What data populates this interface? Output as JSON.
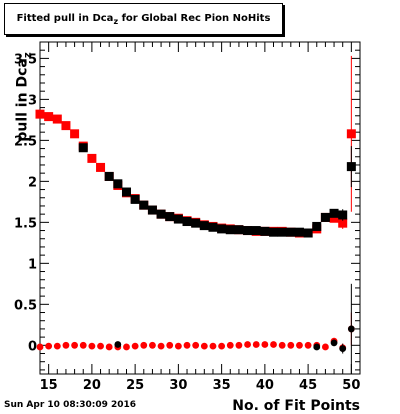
{
  "title": {
    "main": "Fitted pull in Dca",
    "subscript": "z",
    "suffix": " for Global Rec Pion NoHits"
  },
  "ylabel": {
    "main": "pull in Dca",
    "subscript": "z"
  },
  "xlabel": "No. of Fit Points",
  "timestamp": "Sun Apr 10 08:30:09 2016",
  "colors": {
    "red": "#ff0000",
    "black": "#000000"
  },
  "chart_data": {
    "type": "scatter",
    "xlim": [
      14,
      51
    ],
    "ylim": [
      -0.35,
      3.7
    ],
    "xticks": [
      15,
      20,
      25,
      30,
      35,
      40,
      45,
      50
    ],
    "xtick_labels": [
      "15",
      "20",
      "25",
      "30",
      "35",
      "40",
      "45",
      "50"
    ],
    "yticks": [
      0,
      0.5,
      1,
      1.5,
      2,
      2.5,
      3,
      3.5
    ],
    "ytick_labels": [
      "0",
      "0.5",
      "1",
      "1.5",
      "2",
      "2.5",
      "3",
      "3.5"
    ],
    "grid": false,
    "series": [
      {
        "color": "red",
        "marker": "square",
        "x": [
          14,
          15,
          16,
          17,
          18,
          19,
          20,
          21,
          22,
          23,
          24,
          25,
          26,
          27,
          28,
          29,
          30,
          31,
          32,
          33,
          34,
          35,
          36,
          37,
          38,
          39,
          40,
          41,
          42,
          43,
          44,
          45,
          46,
          47,
          48,
          49,
          50
        ],
        "y": [
          2.82,
          2.79,
          2.76,
          2.68,
          2.58,
          2.43,
          2.28,
          2.17,
          2.06,
          1.95,
          1.86,
          1.79,
          1.71,
          1.65,
          1.6,
          1.57,
          1.55,
          1.52,
          1.5,
          1.47,
          1.45,
          1.43,
          1.42,
          1.41,
          1.4,
          1.39,
          1.39,
          1.39,
          1.39,
          1.38,
          1.37,
          1.37,
          1.42,
          1.56,
          1.55,
          1.49,
          2.58
        ],
        "yerr": [
          0.02,
          0.02,
          0.02,
          0.02,
          0.02,
          0.02,
          0.02,
          0.02,
          0.02,
          0.02,
          0.02,
          0.02,
          0.02,
          0.02,
          0.02,
          0.02,
          0.02,
          0.02,
          0.02,
          0.02,
          0.02,
          0.02,
          0.02,
          0.02,
          0.02,
          0.02,
          0.02,
          0.02,
          0.02,
          0.02,
          0.02,
          0.03,
          0.03,
          0.04,
          0.05,
          0.07,
          0.95
        ]
      },
      {
        "color": "black",
        "marker": "square",
        "x": [
          19,
          22,
          23,
          24,
          25,
          26,
          27,
          28,
          29,
          30,
          31,
          32,
          33,
          34,
          35,
          36,
          37,
          38,
          39,
          40,
          41,
          42,
          43,
          44,
          45,
          46,
          47,
          48,
          49,
          50
        ],
        "y": [
          2.41,
          2.06,
          1.97,
          1.87,
          1.78,
          1.71,
          1.65,
          1.6,
          1.57,
          1.54,
          1.51,
          1.49,
          1.46,
          1.44,
          1.42,
          1.41,
          1.41,
          1.4,
          1.4,
          1.39,
          1.38,
          1.38,
          1.38,
          1.38,
          1.37,
          1.45,
          1.56,
          1.61,
          1.59,
          2.18
        ],
        "yerr": [
          0.02,
          0.02,
          0.02,
          0.02,
          0.02,
          0.02,
          0.02,
          0.02,
          0.02,
          0.02,
          0.02,
          0.02,
          0.02,
          0.02,
          0.02,
          0.02,
          0.02,
          0.02,
          0.02,
          0.02,
          0.02,
          0.02,
          0.02,
          0.02,
          0.02,
          0.03,
          0.04,
          0.05,
          0.07,
          0.25
        ]
      },
      {
        "color": "red",
        "marker": "circle",
        "x": [
          14,
          15,
          16,
          17,
          18,
          19,
          20,
          21,
          22,
          23,
          24,
          25,
          26,
          27,
          28,
          29,
          30,
          31,
          32,
          33,
          34,
          35,
          36,
          37,
          38,
          39,
          40,
          41,
          42,
          43,
          44,
          45,
          46,
          47,
          48,
          49,
          50
        ],
        "y": [
          -0.02,
          -0.01,
          -0.01,
          0.0,
          0.0,
          0.0,
          -0.01,
          -0.01,
          -0.02,
          -0.02,
          -0.02,
          -0.01,
          0.0,
          0.0,
          -0.01,
          0.0,
          -0.01,
          0.0,
          0.0,
          -0.01,
          -0.01,
          -0.01,
          0.0,
          0.0,
          0.01,
          0.01,
          0.01,
          0.01,
          0.0,
          0.0,
          0.0,
          0.0,
          0.0,
          -0.02,
          0.05,
          -0.03,
          0.2
        ],
        "yerr": [
          0.02,
          0.02,
          0.02,
          0.02,
          0.02,
          0.02,
          0.02,
          0.02,
          0.02,
          0.02,
          0.02,
          0.02,
          0.02,
          0.02,
          0.02,
          0.02,
          0.02,
          0.02,
          0.02,
          0.02,
          0.02,
          0.02,
          0.02,
          0.02,
          0.02,
          0.02,
          0.02,
          0.02,
          0.02,
          0.02,
          0.02,
          0.02,
          0.02,
          0.03,
          0.04,
          0.05,
          0.2
        ]
      },
      {
        "color": "black",
        "marker": "circle",
        "x": [
          23,
          46,
          48,
          49,
          50
        ],
        "y": [
          0.01,
          -0.02,
          0.03,
          -0.04,
          0.2
        ],
        "yerr": [
          0.02,
          0.03,
          0.04,
          0.06,
          0.55
        ]
      }
    ]
  }
}
